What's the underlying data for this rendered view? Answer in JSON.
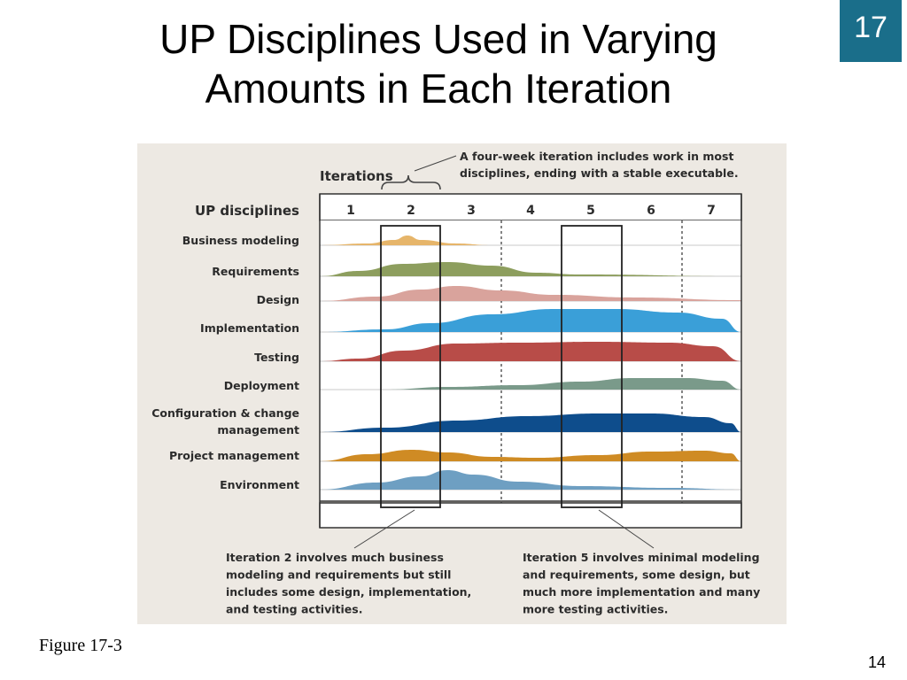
{
  "slide": {
    "title_line1": "UP Disciplines Used in Varying",
    "title_line2": "Amounts in Each Iteration",
    "chapter_number": "17",
    "figure_caption": "Figure 17-3",
    "page_number": "14"
  },
  "diagram": {
    "iterations_label": "Iterations",
    "iterations_annotation": [
      "A four-week iteration includes work in most",
      "disciplines, ending with a stable executable."
    ],
    "disciplines_header": "UP disciplines",
    "iterations": [
      "1",
      "2",
      "3",
      "4",
      "5",
      "6",
      "7"
    ],
    "disciplines": [
      {
        "lines": [
          "Business modeling"
        ],
        "color": "#e6b56a"
      },
      {
        "lines": [
          "Requirements"
        ],
        "color": "#8d9e5e"
      },
      {
        "lines": [
          "Design"
        ],
        "color": "#d9a39c"
      },
      {
        "lines": [
          "Implementation"
        ],
        "color": "#3a9fd8"
      },
      {
        "lines": [
          "Testing"
        ],
        "color": "#b84c48"
      },
      {
        "lines": [
          "Deployment"
        ],
        "color": "#7a9a8a"
      },
      {
        "lines": [
          "Configuration & change",
          "management"
        ],
        "color": "#0e4d8c"
      },
      {
        "lines": [
          "Project management"
        ],
        "color": "#cf8b24"
      },
      {
        "lines": [
          "Environment"
        ],
        "color": "#6e9fc2"
      }
    ],
    "note_iteration2": [
      "Iteration 2 involves much business",
      "modeling and requirements but still",
      "includes some design, implementation,",
      "and testing activities."
    ],
    "note_iteration5": [
      "Iteration 5 involves minimal modeling",
      "and requirements, some design, but",
      "much more implementation and many",
      "more testing activities."
    ]
  }
}
